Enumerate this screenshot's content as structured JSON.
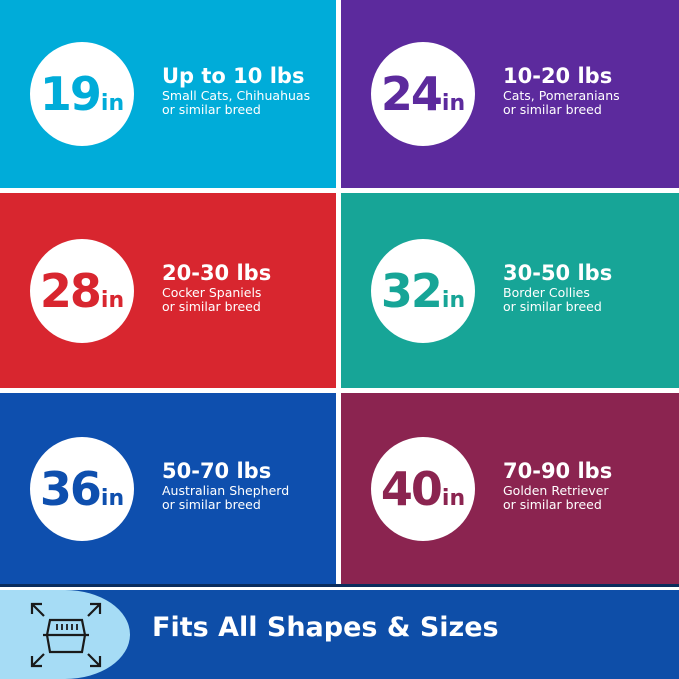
{
  "sizes": [
    {
      "number": "19",
      "unit": "in",
      "weight": "Up to 10 lbs",
      "line1": "Small Cats, Chihuahuas",
      "line2": "or similar breed",
      "color": "#00acd9"
    },
    {
      "number": "24",
      "unit": "in",
      "weight": "10-20 lbs",
      "line1": "Cats, Pomeranians",
      "line2": "or similar breed",
      "color": "#5c2a9d"
    },
    {
      "number": "28",
      "unit": "in",
      "weight": "20-30 lbs",
      "line1": "Cocker Spaniels",
      "line2": "or similar breed",
      "color": "#d8262f"
    },
    {
      "number": "32",
      "unit": "in",
      "weight": "30-50 lbs",
      "line1": "Border Collies",
      "line2": "or similar breed",
      "color": "#17a597"
    },
    {
      "number": "36",
      "unit": "in",
      "weight": "50-70 lbs",
      "line1": "Australian Shepherd",
      "line2": "or similar breed",
      "color": "#0e4fae"
    },
    {
      "number": "40",
      "unit": "in",
      "weight": "70-90 lbs",
      "line1": "Golden Retriever",
      "line2": "or similar breed",
      "color": "#8b2450"
    }
  ],
  "footer": {
    "tagline": "Fits All Shapes & Sizes",
    "icon": "crate-expand-icon",
    "color": "#0e4ea8",
    "icon_bg_color": "#a6dcf5"
  }
}
